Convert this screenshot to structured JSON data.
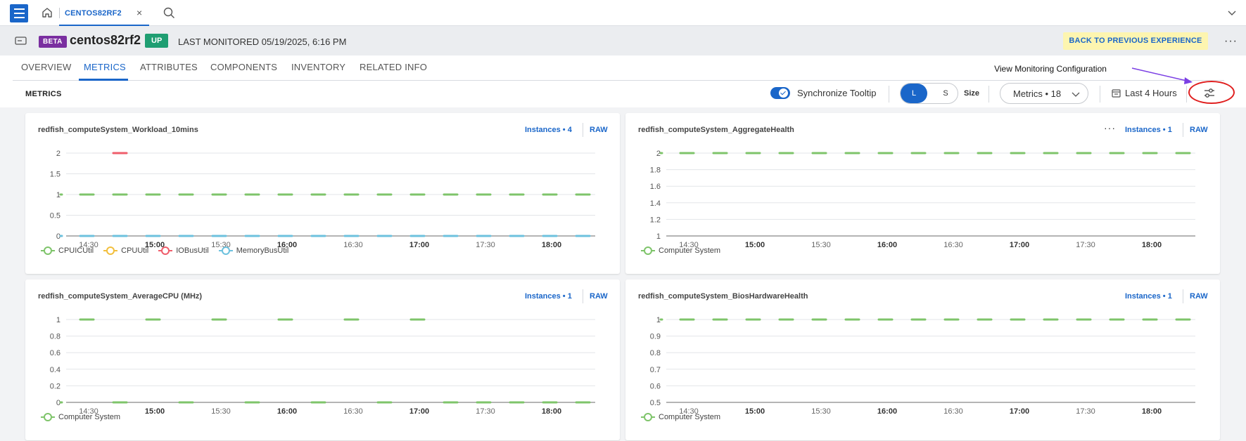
{
  "topbar": {
    "tab_label": "CENTOS82RF2",
    "tab_close": "×"
  },
  "header": {
    "beta": "BETA",
    "device_name": "centos82rf2",
    "status": "UP",
    "last_monitored": "LAST MONITORED 05/19/2025, 6:16 PM",
    "back_button": "BACK TO PREVIOUS EXPERIENCE",
    "more": "···"
  },
  "nav": {
    "tabs": [
      "OVERVIEW",
      "METRICS",
      "ATTRIBUTES",
      "COMPONENTS",
      "INVENTORY",
      "RELATED INFO"
    ],
    "active": "METRICS"
  },
  "toolbar": {
    "heading": "METRICS",
    "sync_label": "Synchronize Tooltip",
    "size_l": "L",
    "size_s": "S",
    "size_label": "Size",
    "metrics_dropdown": "Metrics • 18",
    "time_range": "Last 4 Hours"
  },
  "annotation": {
    "tooltip": "View Monitoring Configuration"
  },
  "colors": {
    "accent": "#1a66c9",
    "green": "#7ec46a",
    "yellow": "#f2bf3d",
    "red": "#ef5d6b",
    "blue": "#6cc1de"
  },
  "x_ticks": [
    {
      "label": "14:30",
      "bold": false
    },
    {
      "label": "15:00",
      "bold": true
    },
    {
      "label": "15:30",
      "bold": false
    },
    {
      "label": "16:00",
      "bold": true
    },
    {
      "label": "16:30",
      "bold": false
    },
    {
      "label": "17:00",
      "bold": true
    },
    {
      "label": "17:30",
      "bold": false
    },
    {
      "label": "18:00",
      "bold": true
    }
  ],
  "chart_data": [
    {
      "type": "line",
      "title": "redfish_computeSystem_Workload_10mins",
      "instances": "Instances • 4",
      "raw": "RAW",
      "has_more": false,
      "ylim": [
        0,
        2
      ],
      "yticks": [
        "0",
        "0.5",
        "1",
        "1.5",
        "2"
      ],
      "series": [
        {
          "name": "CPUICUtil",
          "color": "#7ec46a",
          "segments": [
            [
              1,
              0
            ],
            [
              1,
              1
            ],
            [
              1,
              2
            ],
            [
              1,
              3
            ],
            [
              1,
              4
            ],
            [
              1,
              5
            ],
            [
              1,
              6
            ],
            [
              1,
              7
            ],
            [
              1,
              8
            ],
            [
              1,
              9
            ],
            [
              1,
              10
            ],
            [
              1,
              11
            ],
            [
              1,
              12
            ],
            [
              1,
              13
            ],
            [
              1,
              14
            ],
            [
              1,
              15
            ],
            [
              1,
              16
            ]
          ]
        },
        {
          "name": "CPUUtil",
          "color": "#f2bf3d",
          "segments": []
        },
        {
          "name": "IOBusUtil",
          "color": "#ef5d6b",
          "segments": [
            [
              2,
              2
            ]
          ]
        },
        {
          "name": "MemoryBusUtil",
          "color": "#6cc1de",
          "segments": [
            [
              0,
              0
            ],
            [
              0,
              1
            ],
            [
              0,
              2
            ],
            [
              0,
              3
            ],
            [
              0,
              4
            ],
            [
              0,
              5
            ],
            [
              0,
              6
            ],
            [
              0,
              7
            ],
            [
              0,
              8
            ],
            [
              0,
              9
            ],
            [
              0,
              10
            ],
            [
              0,
              11
            ],
            [
              0,
              12
            ],
            [
              0,
              13
            ],
            [
              0,
              14
            ],
            [
              0,
              15
            ],
            [
              0,
              16
            ]
          ]
        }
      ]
    },
    {
      "type": "line",
      "title": "redfish_computeSystem_AggregateHealth",
      "instances": "Instances • 1",
      "raw": "RAW",
      "has_more": true,
      "more": "···",
      "ylim": [
        1,
        2
      ],
      "yticks": [
        "1",
        "1.2",
        "1.4",
        "1.6",
        "1.8",
        "2"
      ],
      "series": [
        {
          "name": "Computer System",
          "color": "#7ec46a",
          "segments": [
            [
              2,
              0
            ],
            [
              2,
              1
            ],
            [
              2,
              2
            ],
            [
              2,
              3
            ],
            [
              2,
              4
            ],
            [
              2,
              5
            ],
            [
              2,
              6
            ],
            [
              2,
              7
            ],
            [
              2,
              8
            ],
            [
              2,
              9
            ],
            [
              2,
              10
            ],
            [
              2,
              11
            ],
            [
              2,
              12
            ],
            [
              2,
              13
            ],
            [
              2,
              14
            ],
            [
              2,
              15
            ],
            [
              2,
              16
            ]
          ]
        }
      ]
    },
    {
      "type": "line",
      "title": "redfish_computeSystem_AverageCPU (MHz)",
      "instances": "Instances • 1",
      "raw": "RAW",
      "has_more": false,
      "ylim": [
        0,
        1
      ],
      "yticks": [
        "0",
        "0.2",
        "0.4",
        "0.6",
        "0.8",
        "1"
      ],
      "series": [
        {
          "name": "Computer System",
          "color": "#7ec46a",
          "segments": [
            [
              0,
              0
            ],
            [
              1,
              1
            ],
            [
              0,
              2
            ],
            [
              1,
              3
            ],
            [
              0,
              4
            ],
            [
              1,
              5
            ],
            [
              0,
              6
            ],
            [
              1,
              7
            ],
            [
              0,
              8
            ],
            [
              1,
              9
            ],
            [
              0,
              10
            ],
            [
              1,
              11
            ],
            [
              0,
              12
            ],
            [
              0,
              13
            ],
            [
              0,
              14
            ],
            [
              0,
              15
            ],
            [
              0,
              16
            ]
          ]
        }
      ]
    },
    {
      "type": "line",
      "title": "redfish_computeSystem_BiosHardwareHealth",
      "instances": "Instances • 1",
      "raw": "RAW",
      "has_more": false,
      "ylim": [
        0.5,
        1
      ],
      "yticks": [
        "0.5",
        "0.6",
        "0.7",
        "0.8",
        "0.9",
        "1"
      ],
      "series": [
        {
          "name": "Computer System",
          "color": "#7ec46a",
          "segments": [
            [
              1,
              0
            ],
            [
              1,
              1
            ],
            [
              1,
              2
            ],
            [
              1,
              3
            ],
            [
              1,
              4
            ],
            [
              1,
              5
            ],
            [
              1,
              6
            ],
            [
              1,
              7
            ],
            [
              1,
              8
            ],
            [
              1,
              9
            ],
            [
              1,
              10
            ],
            [
              1,
              11
            ],
            [
              1,
              12
            ],
            [
              1,
              13
            ],
            [
              1,
              14
            ],
            [
              1,
              15
            ],
            [
              1,
              16
            ]
          ]
        }
      ]
    }
  ]
}
